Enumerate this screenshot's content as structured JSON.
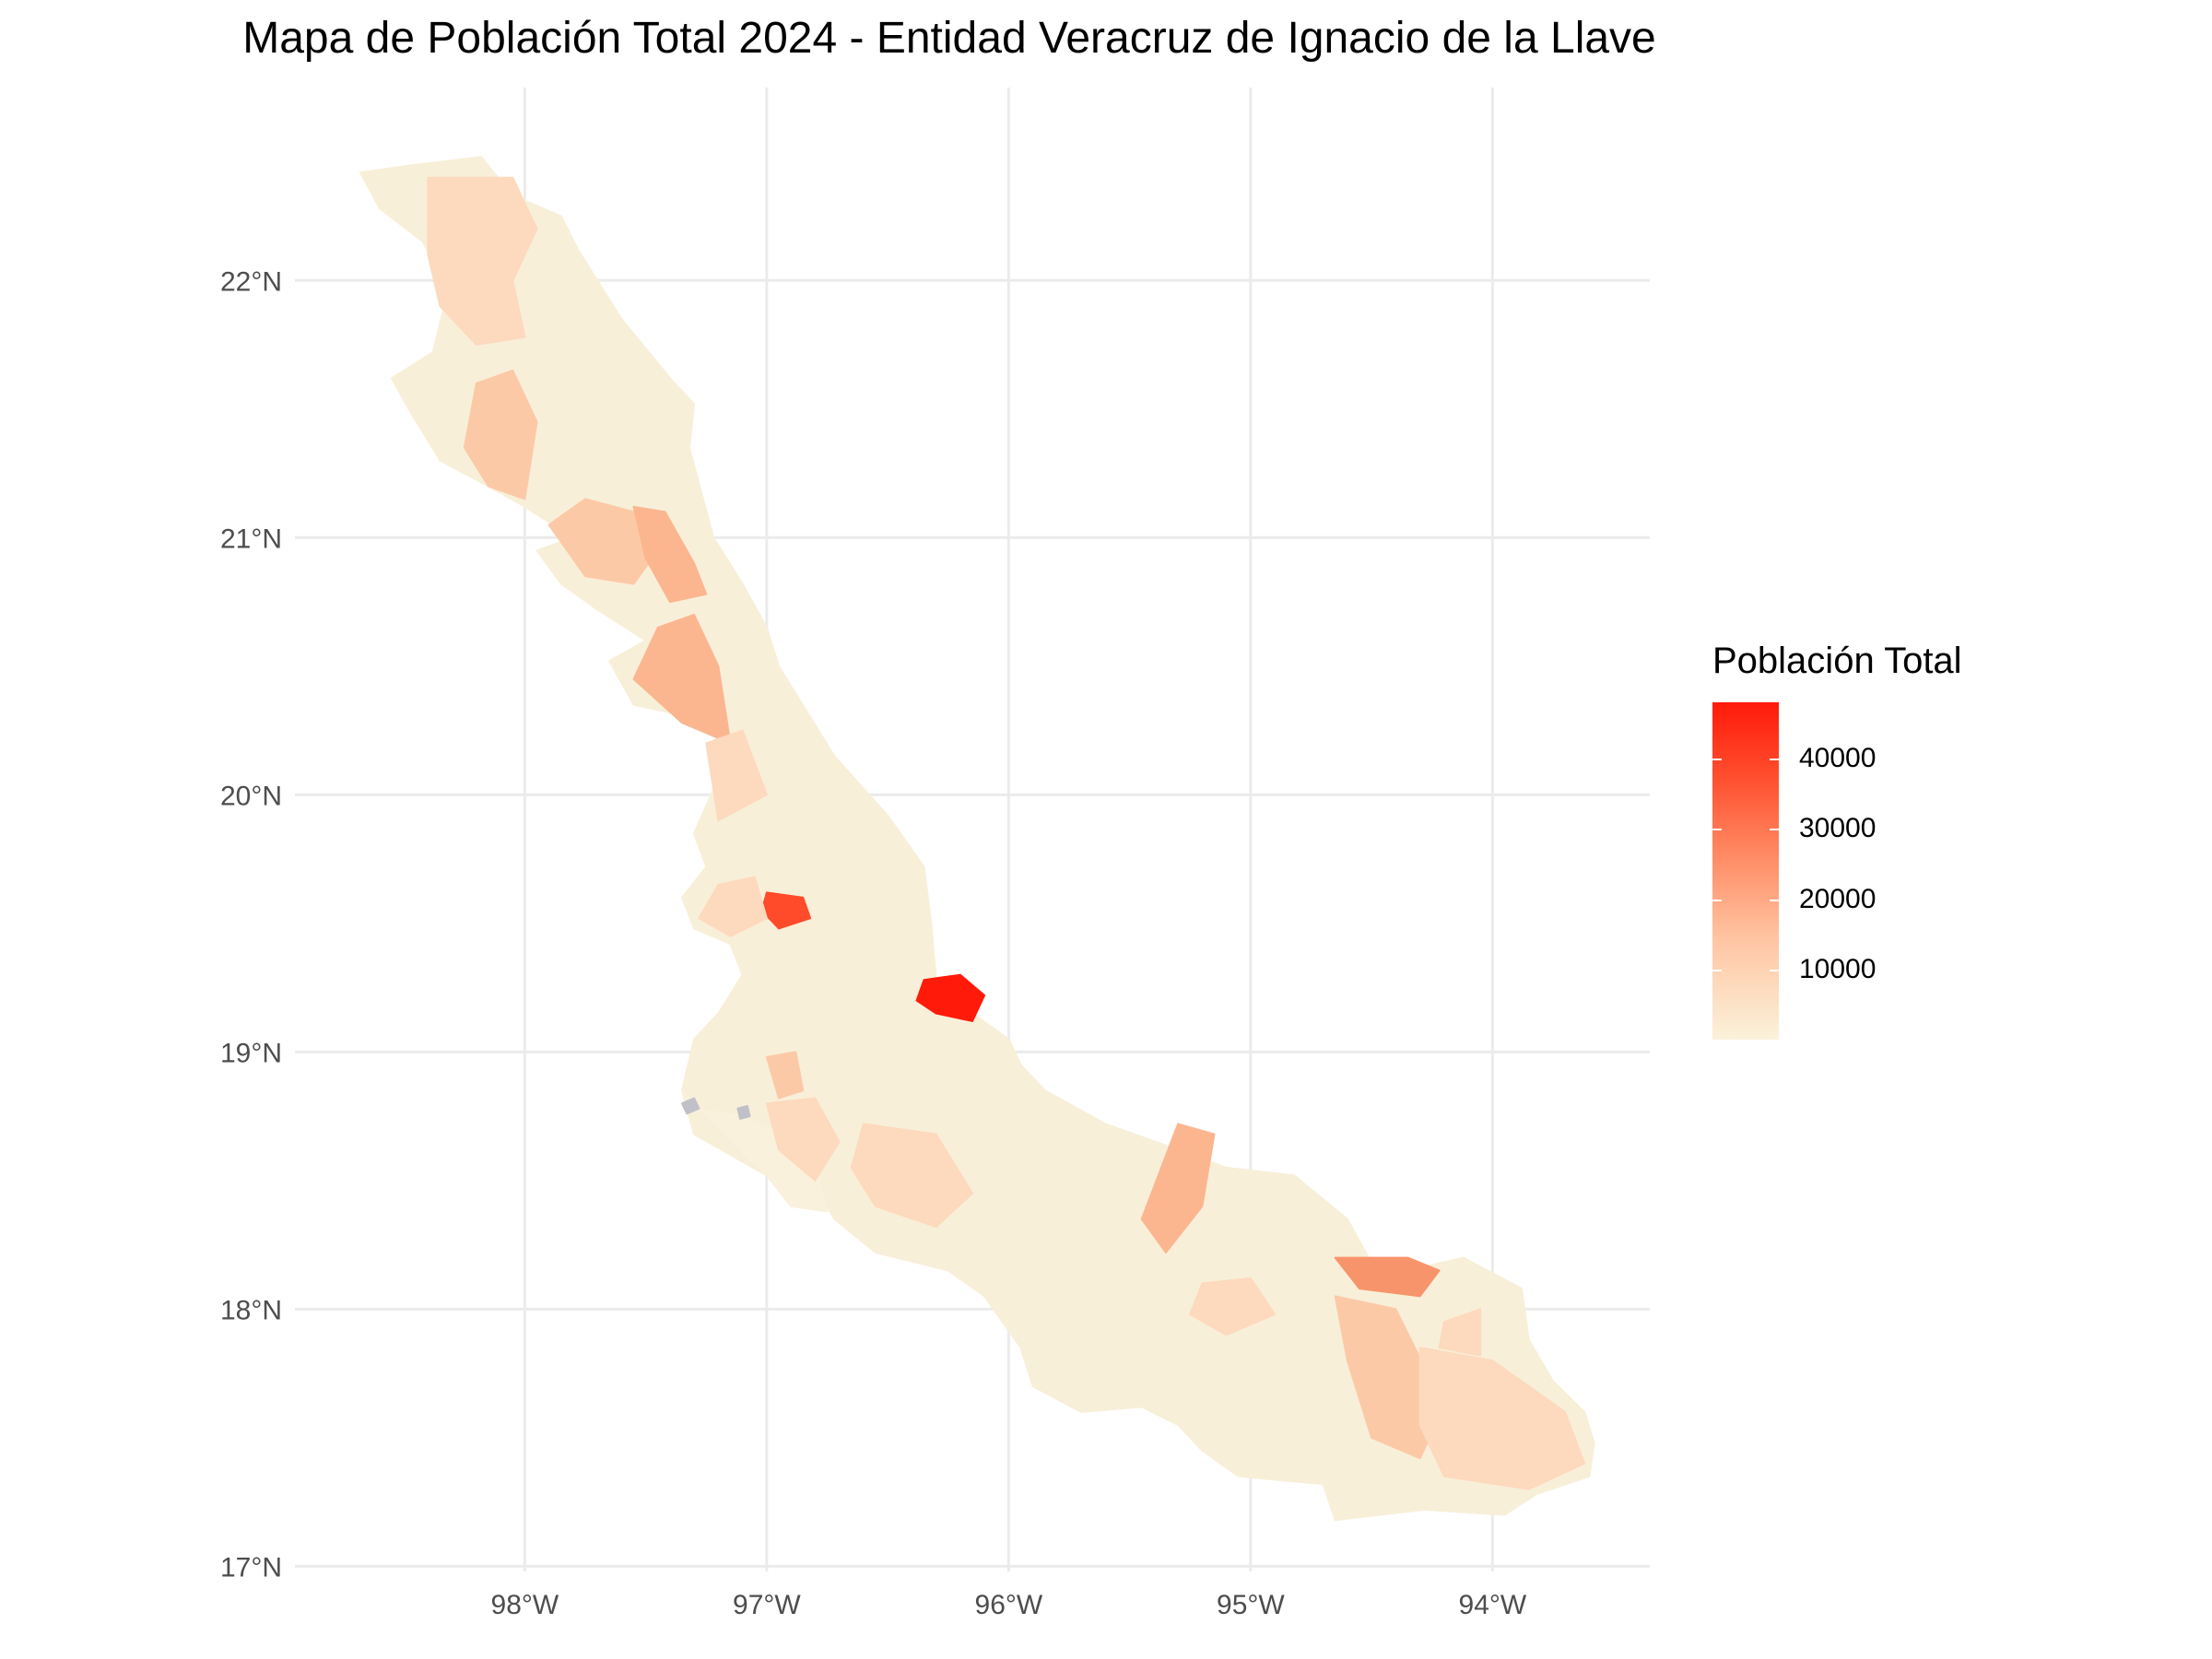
{
  "chart_data": {
    "type": "map",
    "title": "Mapa de Población Total 2024 - Entidad Veracruz de Ignacio de la Llave",
    "projection": "lon/lat",
    "x_range": [
      -98.95,
      -93.35
    ],
    "y_range": [
      16.98,
      22.75
    ],
    "x_ticks": [
      "98°W",
      "97°W",
      "96°W",
      "95°W",
      "94°W"
    ],
    "y_ticks": [
      "17°N",
      "18°N",
      "19°N",
      "20°N",
      "21°N",
      "22°N"
    ],
    "grid": true,
    "legend": {
      "title": "Población Total",
      "placement": "right",
      "scale_min": 0,
      "scale_max": 48000,
      "ticks": [
        "10000",
        "20000",
        "30000",
        "40000"
      ],
      "colors": {
        "low": "#fbf2da",
        "high": "#ff1a0a",
        "missing": "#c0c0c8"
      }
    }
  }
}
